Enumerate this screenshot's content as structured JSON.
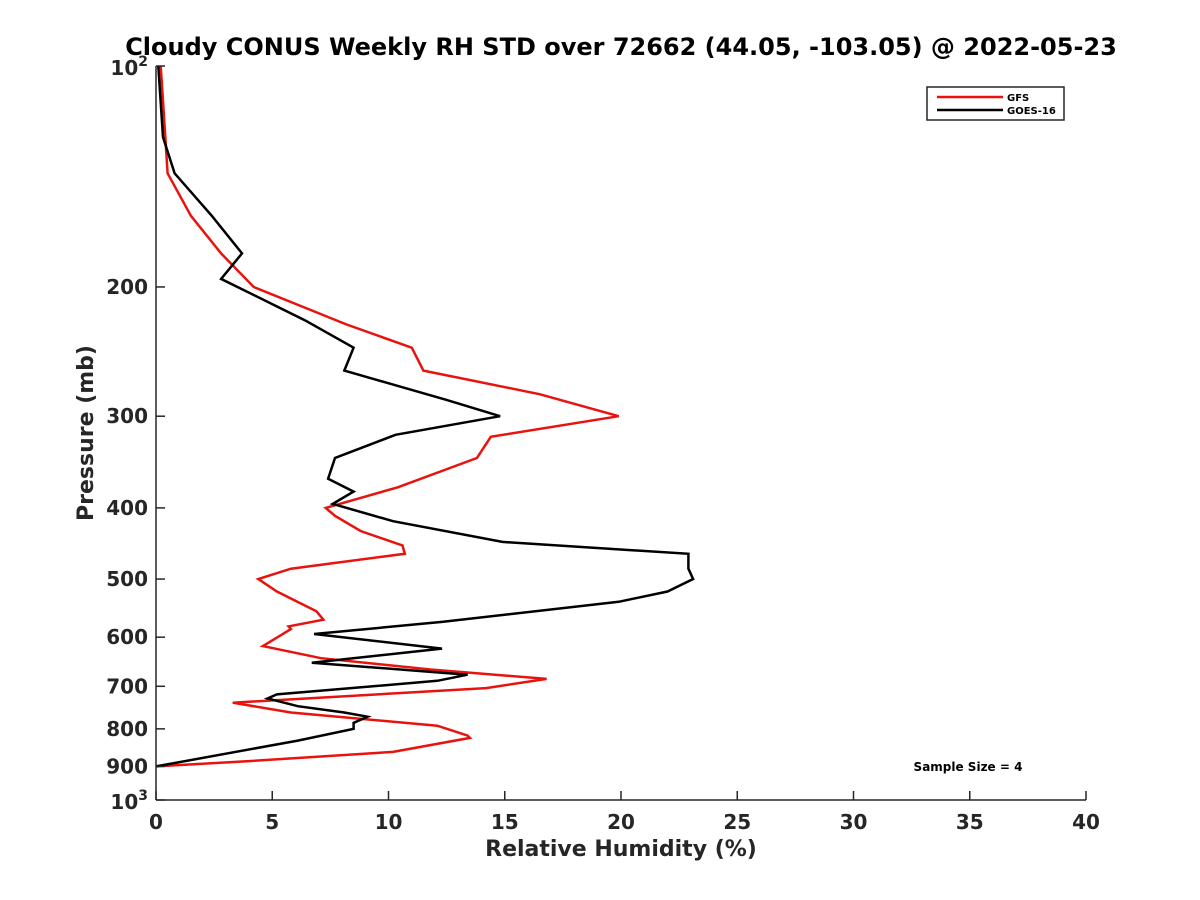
{
  "chart_data": {
    "type": "line",
    "title": "Cloudy CONUS Weekly RH STD over 72662 (44.05, -103.05) @ 2022-05-23",
    "xlabel": "Relative Humidity (%)",
    "ylabel": "Pressure (mb)",
    "xlim": [
      0,
      40
    ],
    "ylim": [
      100,
      1000
    ],
    "y_scale": "log",
    "y_reversed": true,
    "x_ticks": [
      "0",
      "5",
      "10",
      "15",
      "20",
      "25",
      "30",
      "35",
      "40"
    ],
    "y_ticks": [
      {
        "value": 100,
        "base": "10",
        "exp": "2"
      },
      {
        "value": 200,
        "label": "200"
      },
      {
        "value": 300,
        "label": "300"
      },
      {
        "value": 400,
        "label": "400"
      },
      {
        "value": 500,
        "label": "500"
      },
      {
        "value": 600,
        "label": "600"
      },
      {
        "value": 700,
        "label": "700"
      },
      {
        "value": 800,
        "label": "800"
      },
      {
        "value": 900,
        "label": "900"
      },
      {
        "value": 1000,
        "base": "10",
        "exp": "3"
      }
    ],
    "legend_position": "top-right",
    "grid": false,
    "annotation": "Sample Size = 4",
    "series": [
      {
        "name": "GFS",
        "color": "#e8130e",
        "points": [
          [
            0.2,
            100
          ],
          [
            0.4,
            125
          ],
          [
            0.5,
            140
          ],
          [
            1.5,
            160
          ],
          [
            2.8,
            180
          ],
          [
            4.2,
            200
          ],
          [
            8.2,
            225
          ],
          [
            11.0,
            242
          ],
          [
            11.5,
            260
          ],
          [
            16.5,
            280
          ],
          [
            19.9,
            300
          ],
          [
            14.4,
            320
          ],
          [
            13.8,
            342
          ],
          [
            10.4,
            375
          ],
          [
            7.3,
            400
          ],
          [
            7.7,
            410
          ],
          [
            8.8,
            430
          ],
          [
            10.6,
            450
          ],
          [
            10.7,
            462
          ],
          [
            5.8,
            484
          ],
          [
            4.4,
            500
          ],
          [
            5.2,
            520
          ],
          [
            6.9,
            553
          ],
          [
            7.2,
            568
          ],
          [
            5.7,
            580
          ],
          [
            5.8,
            585
          ],
          [
            4.6,
            617
          ],
          [
            7.1,
            641
          ],
          [
            11.8,
            664
          ],
          [
            16.8,
            684
          ],
          [
            14.2,
            704
          ],
          [
            3.3,
            737
          ],
          [
            5.8,
            760
          ],
          [
            12.1,
            792
          ],
          [
            13.4,
            817
          ],
          [
            13.5,
            823
          ],
          [
            10.2,
            860
          ],
          [
            4.0,
            885
          ],
          [
            0.0,
            900
          ]
        ]
      },
      {
        "name": "GOES-16",
        "color": "#000000",
        "points": [
          [
            0.1,
            100
          ],
          [
            0.3,
            125
          ],
          [
            0.8,
            140
          ],
          [
            2.4,
            160
          ],
          [
            3.7,
            180
          ],
          [
            2.8,
            195
          ],
          [
            6.4,
            222
          ],
          [
            8.5,
            242
          ],
          [
            8.1,
            260
          ],
          [
            12.5,
            285
          ],
          [
            14.8,
            300
          ],
          [
            10.3,
            318
          ],
          [
            7.7,
            342
          ],
          [
            7.4,
            365
          ],
          [
            8.5,
            380
          ],
          [
            7.6,
            395
          ],
          [
            10.2,
            417
          ],
          [
            14.9,
            445
          ],
          [
            22.9,
            462
          ],
          [
            22.9,
            484
          ],
          [
            23.1,
            500
          ],
          [
            22.0,
            520
          ],
          [
            19.9,
            537
          ],
          [
            12.3,
            572
          ],
          [
            6.8,
            594
          ],
          [
            12.3,
            622
          ],
          [
            6.7,
            650
          ],
          [
            13.4,
            675
          ],
          [
            12.1,
            688
          ],
          [
            5.2,
            718
          ],
          [
            4.8,
            727
          ],
          [
            6.1,
            745
          ],
          [
            8.1,
            760
          ],
          [
            9.1,
            770
          ],
          [
            8.5,
            785
          ],
          [
            8.5,
            800
          ],
          [
            6.1,
            830
          ],
          [
            0.0,
            900
          ]
        ]
      }
    ]
  }
}
